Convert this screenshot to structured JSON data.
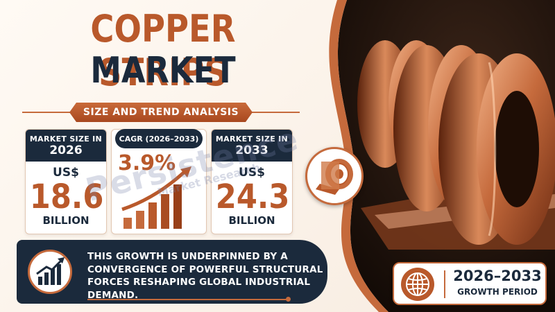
{
  "title": {
    "line1": "COPPER STRIPS",
    "line2": "MARKET"
  },
  "subtitle": "SIZE AND TREND ANALYSIS",
  "card_left": {
    "label": "MARKET SIZE IN",
    "year": "2026",
    "currency": "US$",
    "value": "18.6",
    "unit": "BILLION"
  },
  "card_mid": {
    "label": "CAGR (2026–2033)",
    "value": "3.9%"
  },
  "card_right": {
    "label": "MARKET SIZE IN",
    "year": "2033",
    "currency": "US$",
    "value": "24.3",
    "unit": "BILLION"
  },
  "watermark": {
    "line1": "Persistence",
    "line2": "Market Research"
  },
  "banner": {
    "text": "THIS GROWTH IS UNDERPINNED BY A CONVERGENCE OF POWERFUL STRUCTURAL FORCES RESHAPING GLOBAL INDUSTRIAL DEMAND."
  },
  "growth_period": {
    "years": "2026–2033",
    "label": "GROWTH PERIOD"
  },
  "icons": [
    "bar-chart-arrow-icon",
    "growth-chart-icon",
    "globe-icon",
    "copper-coil-icon"
  ],
  "colors": {
    "copper": "#b9592b",
    "navy": "#1b2a3c",
    "accent": "#c56a3c"
  }
}
